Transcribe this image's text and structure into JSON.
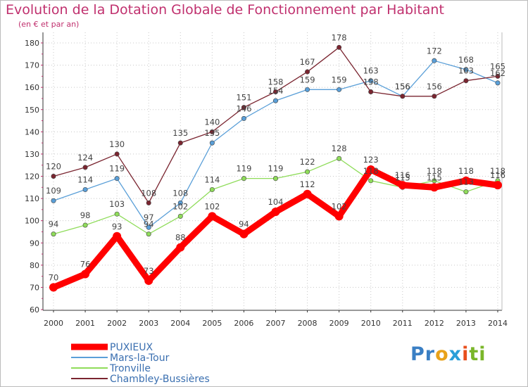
{
  "title": "Evolution de la Dotation Globale de Fonctionnement par Habitant",
  "subtitle": "(en € et par an)",
  "logo": {
    "text": "Proxiti",
    "parts": [
      "Pr",
      "o",
      "x",
      "i",
      "ti"
    ]
  },
  "chart_data": {
    "type": "line",
    "title": "Evolution de la Dotation Globale de Fonctionnement par Habitant",
    "ylabel": "(en € et par an)",
    "xlabel": "",
    "ylim": [
      60,
      180
    ],
    "yticks": [
      60,
      70,
      80,
      90,
      100,
      110,
      120,
      130,
      140,
      150,
      160,
      170,
      180
    ],
    "categories": [
      "2000",
      "2001",
      "2002",
      "2003",
      "2004",
      "2005",
      "2006",
      "2007",
      "2008",
      "2009",
      "2010",
      "2011",
      "2012",
      "2013",
      "2014"
    ],
    "legend_position": "bottom-left",
    "series": [
      {
        "name": "PUXIEUX",
        "color": "#ff0000",
        "thick": true,
        "values": [
          70,
          76,
          93,
          73,
          88,
          102,
          94,
          104,
          112,
          102,
          123,
          116,
          115,
          118,
          116
        ],
        "labels": [
          "70",
          "76",
          "93",
          "73",
          "88",
          "102",
          "94",
          "104",
          "112",
          "102",
          "123",
          "116",
          "115",
          "118",
          "116"
        ]
      },
      {
        "name": "Mars-la-Tour",
        "color": "#5a9fd8",
        "thick": false,
        "values": [
          109,
          114,
          119,
          97,
          108,
          135,
          146,
          154,
          159,
          159,
          163,
          156,
          172,
          168,
          162
        ],
        "labels": [
          "109",
          "114",
          "119",
          "97",
          "108",
          "135",
          "146",
          "154",
          "159",
          "159",
          "163",
          "156",
          "172",
          "168",
          "162"
        ]
      },
      {
        "name": "Tronville",
        "color": "#8fdc5a",
        "thick": false,
        "values": [
          94,
          98,
          103,
          94,
          102,
          114,
          119,
          119,
          122,
          128,
          118,
          115,
          118,
          113,
          118
        ],
        "labels": [
          "94",
          "98",
          "103",
          "94",
          "102",
          "114",
          "119",
          "119",
          "122",
          "128",
          "118",
          "115",
          "118",
          "113",
          "118"
        ]
      },
      {
        "name": "Chambley-Bussières",
        "color": "#7a2530",
        "thick": false,
        "values": [
          120,
          124,
          130,
          108,
          135,
          140,
          151,
          158,
          167,
          178,
          158,
          156,
          156,
          163,
          165
        ],
        "labels": [
          "120",
          "124",
          "130",
          "108",
          "135",
          "140",
          "151",
          "158",
          "167",
          "178",
          "158",
          "156",
          "156",
          "163",
          "165"
        ]
      }
    ]
  }
}
